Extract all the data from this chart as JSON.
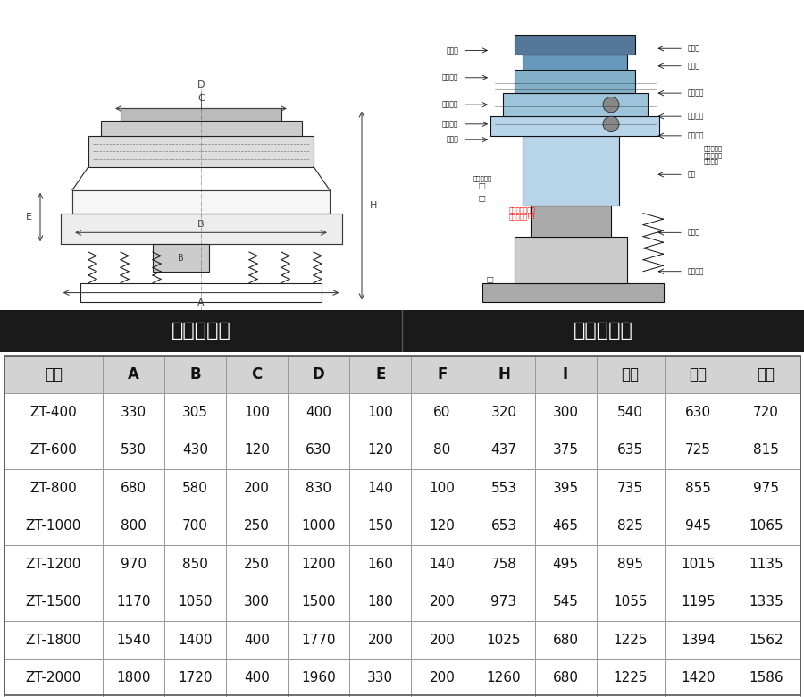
{
  "headers": [
    "型号",
    "A",
    "B",
    "C",
    "D",
    "E",
    "F",
    "H",
    "I",
    "一层",
    "二层",
    "三层"
  ],
  "rows": [
    [
      "ZT-400",
      "330",
      "305",
      "100",
      "400",
      "100",
      "60",
      "320",
      "300",
      "540",
      "630",
      "720"
    ],
    [
      "ZT-600",
      "530",
      "430",
      "120",
      "630",
      "120",
      "80",
      "437",
      "375",
      "635",
      "725",
      "815"
    ],
    [
      "ZT-800",
      "680",
      "580",
      "200",
      "830",
      "140",
      "100",
      "553",
      "395",
      "735",
      "855",
      "975"
    ],
    [
      "ZT-1000",
      "800",
      "700",
      "250",
      "1000",
      "150",
      "120",
      "653",
      "465",
      "825",
      "945",
      "1065"
    ],
    [
      "ZT-1200",
      "970",
      "850",
      "250",
      "1200",
      "160",
      "140",
      "758",
      "495",
      "895",
      "1015",
      "1135"
    ],
    [
      "ZT-1500",
      "1170",
      "1050",
      "300",
      "1500",
      "180",
      "200",
      "973",
      "545",
      "1055",
      "1195",
      "1335"
    ],
    [
      "ZT-1800",
      "1540",
      "1400",
      "400",
      "1770",
      "200",
      "200",
      "1025",
      "680",
      "1225",
      "1394",
      "1562"
    ],
    [
      "ZT-2000",
      "1800",
      "1720",
      "400",
      "1960",
      "330",
      "200",
      "1260",
      "680",
      "1225",
      "1420",
      "1586"
    ]
  ],
  "header_bg": "#d3d3d3",
  "section_header_bg": "#1a1a1a",
  "section_header_text": "#ffffff",
  "section1_title": "外形尺寸图",
  "section2_title": "一般结构图",
  "border_color": "#999999",
  "header_font_size": 12,
  "cell_font_size": 11,
  "section_font_size": 16,
  "fig_width": 9.0,
  "fig_height": 7.8,
  "diagram_bg": "#f8f8f8",
  "line_color": "#222222",
  "dim_color": "#444444"
}
